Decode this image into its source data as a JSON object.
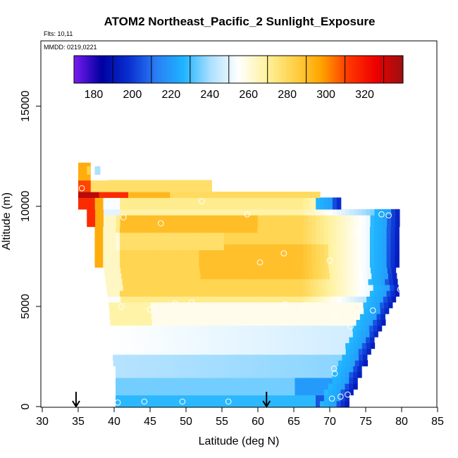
{
  "title": "ATOM2 Northeast_Pacific_2 Sunlight_Exposure",
  "flights_label": "Flts: 10,11",
  "mmdd_label": "MMDD: 0219,0221",
  "colors": {
    "scale": [
      "#7a1cf0",
      "#0000a0",
      "#0a2fd0",
      "#2a7ef5",
      "#1fb4ff",
      "#aee0ff",
      "#ffffff",
      "#fff2a0",
      "#ffd24a",
      "#ffa500",
      "#ff3800",
      "#ee0000",
      "#9b1010"
    ],
    "marker": "#ffffff"
  },
  "chart_data": {
    "type": "heatmap",
    "title": "ATOM2 Northeast_Pacific_2 Sunlight_Exposure",
    "xlabel": "Latitude (deg N)",
    "ylabel": "Altitude (m)",
    "xlim": [
      30,
      85
    ],
    "ylim": [
      0,
      18000
    ],
    "x_ticks": [
      "30",
      "35",
      "40",
      "45",
      "50",
      "55",
      "60",
      "65",
      "70",
      "75",
      "80",
      "85"
    ],
    "y_ticks": [
      "0",
      "5000",
      "10000",
      "15000"
    ],
    "colorbar": {
      "range": [
        160,
        330
      ],
      "ticks": [
        "180",
        "200",
        "220",
        "240",
        "260",
        "280",
        "300",
        "320"
      ]
    },
    "arrows_at_latitude": [
      34.7,
      61.2
    ],
    "profile_points": [
      {
        "lat": 40.5,
        "alt": 200
      },
      {
        "lat": 44.2,
        "alt": 250
      },
      {
        "lat": 49.5,
        "alt": 250
      },
      {
        "lat": 55.9,
        "alt": 250
      },
      {
        "lat": 70.3,
        "alt": 400
      },
      {
        "lat": 71.5,
        "alt": 500
      },
      {
        "lat": 72.5,
        "alt": 600
      },
      {
        "lat": 70.7,
        "alt": 1650
      },
      {
        "lat": 70.6,
        "alt": 1900
      },
      {
        "lat": 70.8,
        "alt": 4450
      },
      {
        "lat": 72.9,
        "alt": 4000
      },
      {
        "lat": 76.0,
        "alt": 4800
      },
      {
        "lat": 41.0,
        "alt": 5000
      },
      {
        "lat": 45.0,
        "alt": 4850
      },
      {
        "lat": 48.5,
        "alt": 5150
      },
      {
        "lat": 50.8,
        "alt": 5200
      },
      {
        "lat": 56.7,
        "alt": 4750
      },
      {
        "lat": 63.8,
        "alt": 5100
      },
      {
        "lat": 66.5,
        "alt": 5050
      },
      {
        "lat": 74.0,
        "alt": 5950
      },
      {
        "lat": 79.8,
        "alt": 5850
      },
      {
        "lat": 60.3,
        "alt": 7200
      },
      {
        "lat": 70.0,
        "alt": 7300
      },
      {
        "lat": 63.6,
        "alt": 7650
      },
      {
        "lat": 73.4,
        "alt": 8700
      },
      {
        "lat": 74.0,
        "alt": 8800
      },
      {
        "lat": 46.5,
        "alt": 9150
      },
      {
        "lat": 41.3,
        "alt": 9450
      },
      {
        "lat": 58.5,
        "alt": 9600
      },
      {
        "lat": 77.2,
        "alt": 9600
      },
      {
        "lat": 78.2,
        "alt": 9550
      },
      {
        "lat": 52.2,
        "alt": 10250
      },
      {
        "lat": 35.5,
        "alt": 10900
      }
    ]
  }
}
